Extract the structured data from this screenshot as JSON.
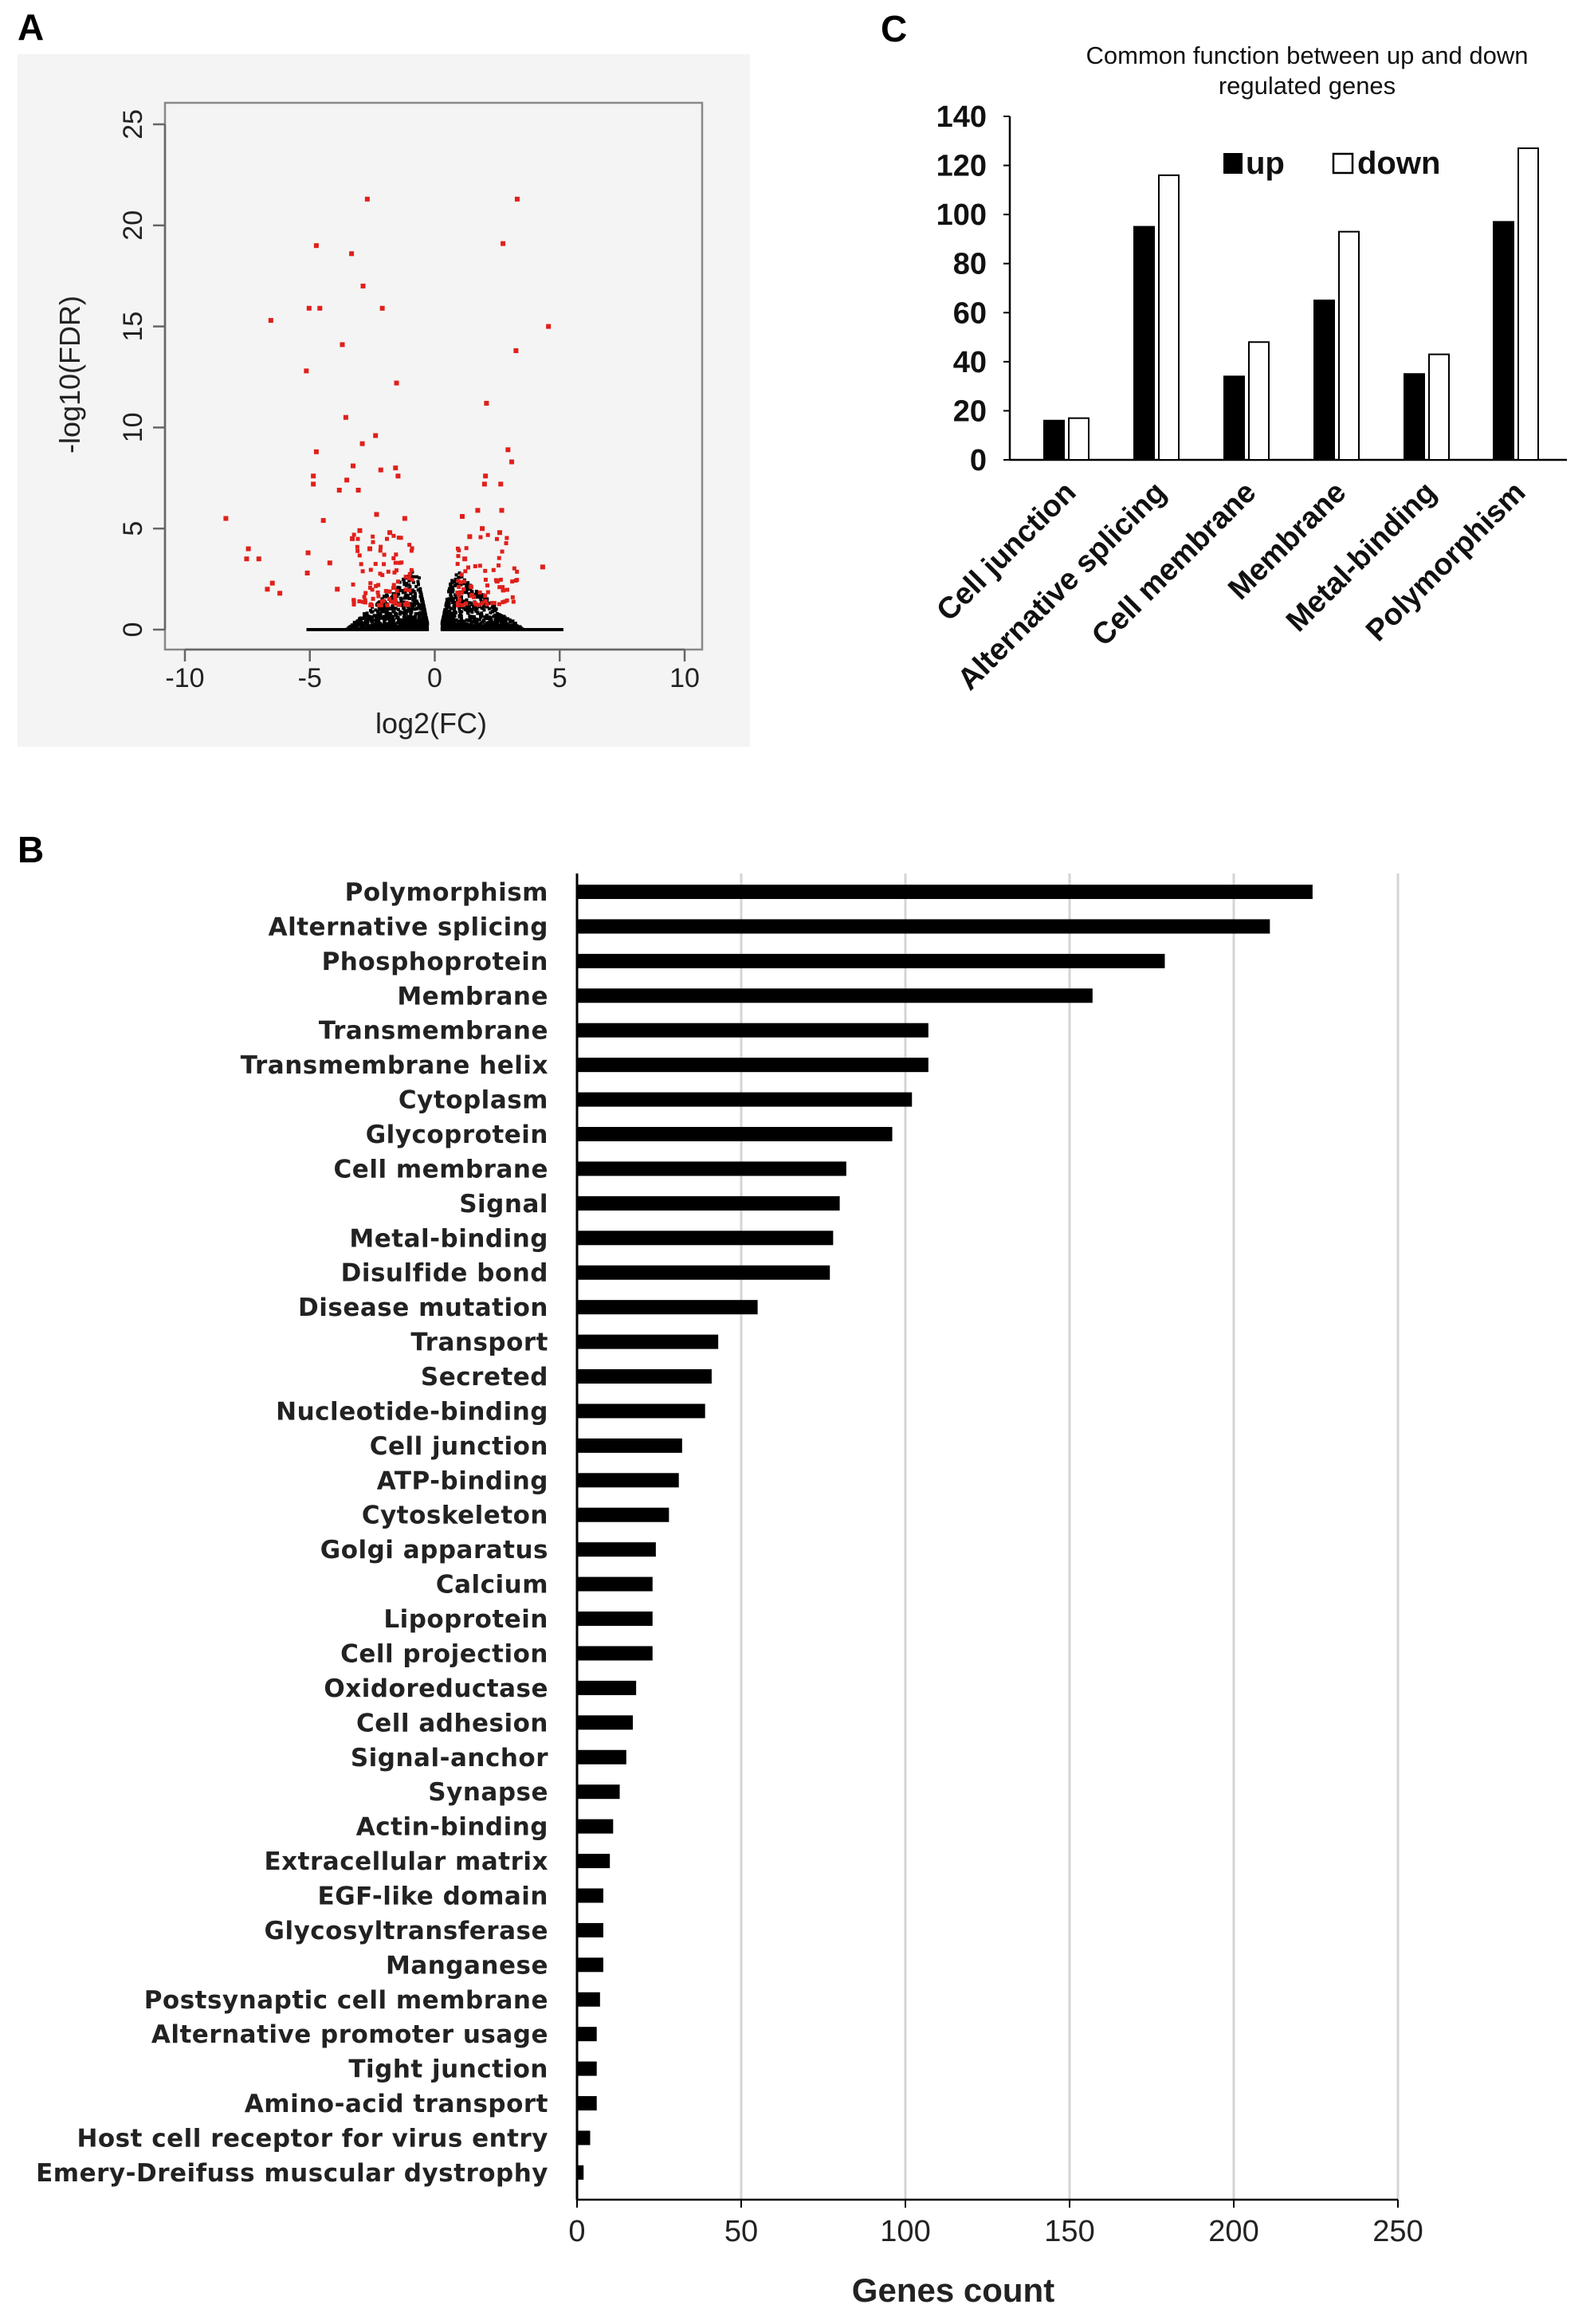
{
  "panels": {
    "a": "A",
    "b": "B",
    "c": "C"
  },
  "chart_data": [
    {
      "id": "A",
      "type": "scatter",
      "xlabel": "log2(FC)",
      "ylabel": "-log10(FDR)",
      "xlim": [
        -10,
        10
      ],
      "ylim": [
        0,
        25
      ],
      "xticks": [
        -10,
        -5,
        0,
        5,
        10
      ],
      "yticks": [
        0,
        5,
        10,
        15,
        20,
        25
      ],
      "grid": false,
      "background": "#f4f4f4",
      "colors": {
        "significant": "#e0201a",
        "nonsignificant": "#000000"
      },
      "significant_points": [
        [
          -2.7,
          21.3
        ],
        [
          3.3,
          21.3
        ],
        [
          -4.74,
          19.0
        ],
        [
          -3.33,
          18.6
        ],
        [
          2.73,
          19.1
        ],
        [
          -2.87,
          17.0
        ],
        [
          -5.03,
          15.9
        ],
        [
          -4.6,
          15.9
        ],
        [
          -2.1,
          15.9
        ],
        [
          -6.56,
          15.3
        ],
        [
          4.55,
          15.0
        ],
        [
          -3.7,
          14.1
        ],
        [
          3.25,
          13.8
        ],
        [
          -5.14,
          12.8
        ],
        [
          -1.53,
          12.2
        ],
        [
          2.07,
          11.2
        ],
        [
          -3.56,
          10.5
        ],
        [
          -2.37,
          9.6
        ],
        [
          -2.9,
          9.2
        ],
        [
          2.93,
          8.9
        ],
        [
          -4.74,
          8.8
        ],
        [
          3.08,
          8.3
        ],
        [
          -3.27,
          8.1
        ],
        [
          -2.16,
          7.9
        ],
        [
          -1.57,
          8.0
        ],
        [
          -1.47,
          7.6
        ],
        [
          -4.86,
          7.6
        ],
        [
          -4.86,
          7.2
        ],
        [
          2.03,
          7.6
        ],
        [
          1.99,
          7.2
        ],
        [
          2.64,
          7.2
        ],
        [
          -3.82,
          6.9
        ],
        [
          -3.52,
          7.4
        ],
        [
          -3.06,
          6.9
        ],
        [
          -8.36,
          5.5
        ],
        [
          -4.46,
          5.4
        ],
        [
          -2.33,
          5.7
        ],
        [
          2.68,
          5.9
        ],
        [
          1.72,
          5.9
        ],
        [
          -7.46,
          4.0
        ],
        [
          -7.53,
          3.5
        ],
        [
          -7.04,
          3.5
        ],
        [
          4.32,
          3.1
        ],
        [
          -6.5,
          2.3
        ],
        [
          -5.07,
          3.8
        ],
        [
          -6.7,
          2.0
        ],
        [
          -6.2,
          1.8
        ],
        [
          -5.1,
          2.8
        ],
        [
          -4.2,
          3.3
        ],
        [
          -3.9,
          2.0
        ],
        [
          -3.3,
          4.5
        ],
        [
          -3.0,
          4.9
        ],
        [
          -2.6,
          4.0
        ],
        [
          -1.8,
          4.8
        ],
        [
          -1.2,
          5.5
        ],
        [
          1.1,
          5.6
        ],
        [
          1.4,
          4.6
        ],
        [
          1.9,
          5.0
        ],
        [
          2.6,
          4.8
        ],
        [
          2.5,
          2.4
        ],
        [
          1.2,
          3.5
        ]
      ]
    },
    {
      "id": "B",
      "type": "bar",
      "orientation": "horizontal",
      "xlabel": "Genes count",
      "xlim": [
        0,
        250
      ],
      "xticks": [
        0,
        50,
        100,
        150,
        200,
        250
      ],
      "grid": true,
      "color": "#000000",
      "categories": [
        "Polymorphism",
        "Alternative splicing",
        "Phosphoprotein",
        "Membrane",
        "Transmembrane",
        "Transmembrane helix",
        "Cytoplasm",
        "Glycoprotein",
        "Cell membrane",
        "Signal",
        "Metal-binding",
        "Disulfide bond",
        "Disease mutation",
        "Transport",
        "Secreted",
        "Nucleotide-binding",
        "Cell junction",
        "ATP-binding",
        "Cytoskeleton",
        "Golgi apparatus",
        "Calcium",
        "Lipoprotein",
        "Cell projection",
        "Oxidoreductase",
        "Cell adhesion",
        "Signal-anchor",
        "Synapse",
        "Actin-binding",
        "Extracellular matrix",
        "EGF-like domain",
        "Glycosyltransferase",
        "Manganese",
        "Postsynaptic cell membrane",
        "Alternative promoter usage",
        "Tight junction",
        "Amino-acid transport",
        "Host cell receptor for virus entry",
        "Emery-Dreifuss muscular dystrophy"
      ],
      "values": [
        224,
        211,
        179,
        157,
        107,
        107,
        102,
        96,
        82,
        80,
        78,
        77,
        55,
        43,
        41,
        39,
        32,
        31,
        28,
        24,
        23,
        23,
        23,
        18,
        17,
        15,
        13,
        11,
        10,
        8,
        8,
        8,
        7,
        6,
        6,
        6,
        4,
        2
      ]
    },
    {
      "id": "C",
      "type": "bar",
      "title": "Common function between  up and down regulated genes",
      "title_lines": [
        "Common function between  up and down",
        "regulated genes"
      ],
      "ylim": [
        0,
        140
      ],
      "yticks": [
        0,
        20,
        40,
        60,
        80,
        100,
        120,
        140
      ],
      "grid": false,
      "legend": "top-center",
      "categories": [
        "Cell junction",
        "Alternative splicing",
        "Cell membrane",
        "Membrane",
        "Metal-binding",
        "Polymorphism"
      ],
      "series": [
        {
          "name": "up",
          "color": "#000000",
          "values": [
            16,
            95,
            34,
            65,
            35,
            97
          ]
        },
        {
          "name": "down",
          "color": "#ffffff",
          "values": [
            17,
            116,
            48,
            93,
            43,
            127
          ]
        }
      ]
    }
  ]
}
